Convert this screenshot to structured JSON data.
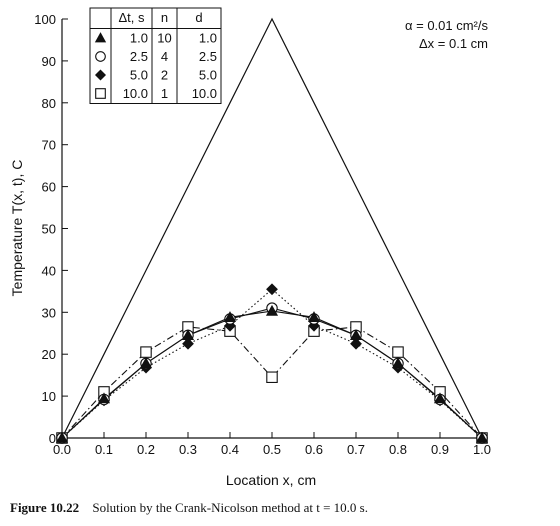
{
  "chart_data": {
    "type": "line",
    "xlabel": "Location x, cm",
    "ylabel": "Temperature T(x, t), C",
    "xlim": [
      0,
      1
    ],
    "ylim": [
      0,
      100
    ],
    "xticks": [
      "0.0",
      "0.1",
      "0.2",
      "0.3",
      "0.4",
      "0.5",
      "0.6",
      "0.7",
      "0.8",
      "0.9",
      "1.0"
    ],
    "yticks": [
      "0",
      "10",
      "20",
      "30",
      "40",
      "50",
      "60",
      "70",
      "80",
      "90",
      "100"
    ],
    "grid": false,
    "annotations": [
      "α = 0.01 cm²/s",
      "Δx = 0.1 cm"
    ],
    "legend": {
      "placement": "top-left",
      "headers": [
        "Δt, s",
        "n",
        "d"
      ],
      "rows": [
        {
          "marker": "triangle-filled",
          "dt": "1.0",
          "n": "10",
          "d": "1.0"
        },
        {
          "marker": "circle-open",
          "dt": "2.5",
          "n": "4",
          "d": "2.5"
        },
        {
          "marker": "diamond-filled",
          "dt": "5.0",
          "n": "2",
          "d": "5.0"
        },
        {
          "marker": "square-open",
          "dt": "10.0",
          "n": "1",
          "d": "10.0"
        }
      ]
    },
    "x": [
      0.0,
      0.1,
      0.2,
      0.3,
      0.4,
      0.5,
      0.6,
      0.7,
      0.8,
      0.9,
      1.0
    ],
    "initial_condition": [
      0,
      20,
      40,
      60,
      80,
      100,
      80,
      60,
      40,
      20,
      0
    ],
    "series": [
      {
        "marker": "triangle-filled",
        "dash": "solid",
        "values": [
          0,
          9.4,
          17.8,
          24.5,
          28.8,
          30.3,
          28.8,
          24.5,
          17.8,
          9.4,
          0
        ]
      },
      {
        "marker": "circle-open",
        "dash": "solid",
        "values": [
          0,
          9.2,
          17.8,
          24.5,
          28.4,
          31.0,
          28.4,
          24.5,
          17.8,
          9.2,
          0
        ]
      },
      {
        "marker": "diamond-filled",
        "dash": "dotted",
        "values": [
          0,
          9.0,
          16.8,
          22.5,
          26.8,
          35.5,
          26.8,
          22.5,
          16.8,
          9.0,
          0
        ]
      },
      {
        "marker": "square-open",
        "dash": "dashdot",
        "values": [
          0,
          11.0,
          20.5,
          26.5,
          25.5,
          14.5,
          25.5,
          26.5,
          20.5,
          11.0,
          0
        ]
      }
    ]
  },
  "caption": {
    "number": "Figure 10.22",
    "text": "Solution by the Crank-Nicolson method at t = 10.0 s."
  }
}
